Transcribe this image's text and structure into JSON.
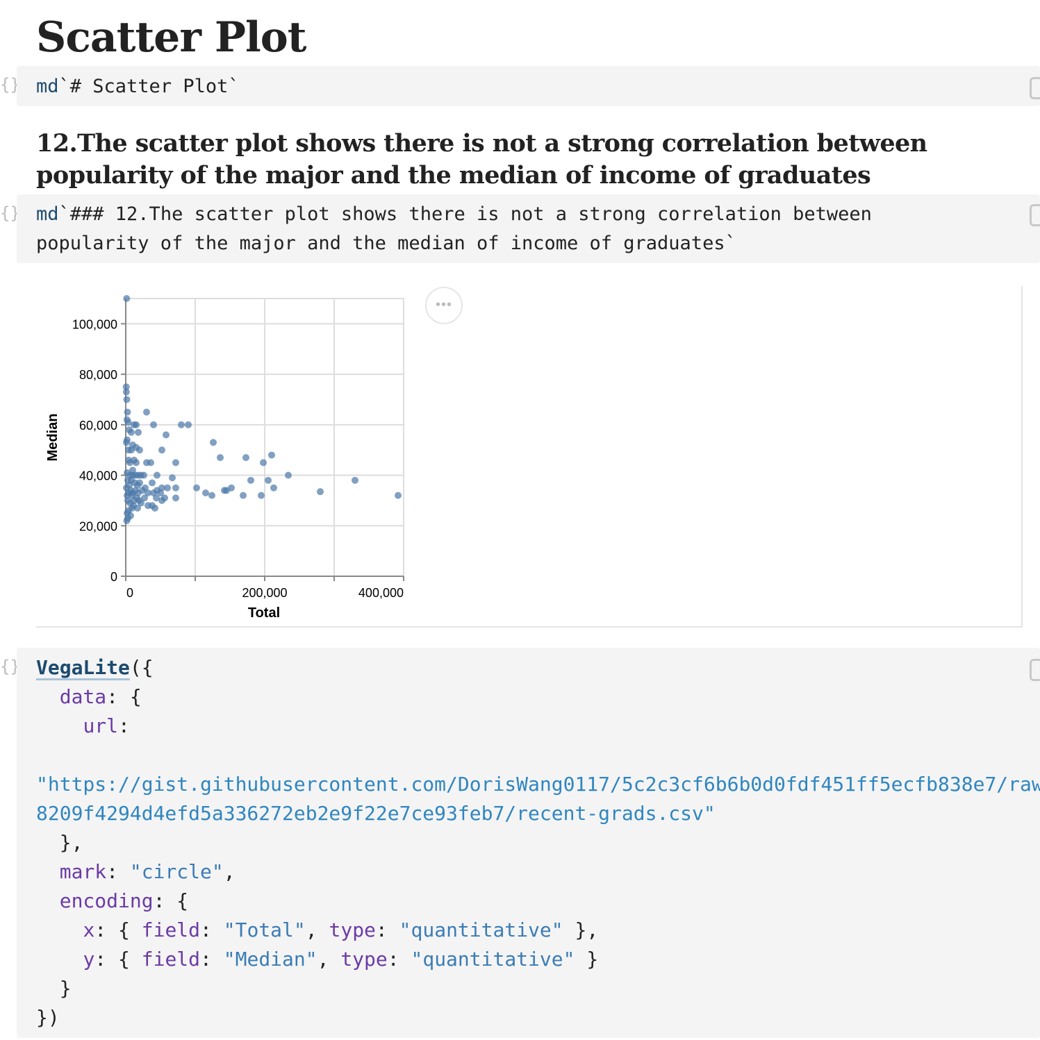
{
  "cells": {
    "title": {
      "heading": "Scatter Plot",
      "source_tag": "md",
      "source_body": "`# Scatter Plot`"
    },
    "subtitle": {
      "heading": "12.The scatter plot shows there is not a strong correlation between popularity of the major and the median of income of graduates",
      "source_tag": "md",
      "source_line1": "`### 12.The scatter plot shows there is not a strong correlation between",
      "source_line2": "popularity of the major and the median of income of graduates`"
    },
    "chart_code": {
      "fn": "VegaLite",
      "l1_rest": "({",
      "data_key": "data",
      "l2_rest": ": {",
      "url_key": "url",
      "l3_rest": ":",
      "url_line1": "\"https://gist.githubusercontent.com/DorisWang0117/5c2c3cf6b6b0d0fdf451ff5ecfb838e7/raw/",
      "url_line2": "8209f4294d4efd5a336272eb2e9f22e7ce93feb7/recent-grads.csv\"",
      "l7": "},",
      "mark_key": "mark",
      "mark_val": "\"circle\"",
      "encoding_key": "encoding",
      "x_key": "x",
      "field_key": "field",
      "type_key": "type",
      "x_field": "\"Total\"",
      "y_key": "y",
      "y_field": "\"Median\"",
      "quant": "\"quantitative\"",
      "close1": "}",
      "close2": "})"
    }
  },
  "gutter_icon": "{}",
  "menu_icon": "more-icon",
  "menu_glyph": "•••",
  "colors": {
    "point": "#4c78a8",
    "grid": "#dddddd",
    "axis": "#888888"
  },
  "chart_data": {
    "type": "scatter",
    "xlabel": "Total",
    "ylabel": "Median",
    "xlim": [
      0,
      400000
    ],
    "ylim": [
      0,
      110000
    ],
    "xticks": [
      "0",
      "200,000",
      "400,000"
    ],
    "yticks": [
      "0",
      "20,000",
      "40,000",
      "60,000",
      "80,000",
      "100,000"
    ],
    "x_tick_values": [
      0,
      200000,
      400000
    ],
    "y_tick_values": [
      0,
      20000,
      40000,
      60000,
      80000,
      100000
    ],
    "grid": true,
    "points": [
      [
        1258,
        110000
      ],
      [
        720,
        75000
      ],
      [
        850,
        73000
      ],
      [
        1500,
        70000
      ],
      [
        2500,
        65000
      ],
      [
        30000,
        65000
      ],
      [
        1800,
        62000
      ],
      [
        3500,
        61000
      ],
      [
        12000,
        60000
      ],
      [
        15000,
        60000
      ],
      [
        40000,
        60000
      ],
      [
        80000,
        60000
      ],
      [
        90000,
        60000
      ],
      [
        5000,
        58000
      ],
      [
        8000,
        57000
      ],
      [
        18000,
        57000
      ],
      [
        58000,
        56000
      ],
      [
        126000,
        53000
      ],
      [
        2000,
        54000
      ],
      [
        1000,
        53000
      ],
      [
        10000,
        52000
      ],
      [
        15000,
        51000
      ],
      [
        4000,
        50000
      ],
      [
        8000,
        50000
      ],
      [
        20000,
        50000
      ],
      [
        52000,
        50000
      ],
      [
        210000,
        48000
      ],
      [
        136000,
        47000
      ],
      [
        173000,
        47000
      ],
      [
        198000,
        45000
      ],
      [
        4000,
        46000
      ],
      [
        12000,
        46000
      ],
      [
        6000,
        45000
      ],
      [
        15000,
        45000
      ],
      [
        30000,
        45000
      ],
      [
        36000,
        45000
      ],
      [
        72000,
        45000
      ],
      [
        10000,
        42000
      ],
      [
        2000,
        41000
      ],
      [
        6000,
        40000
      ],
      [
        10000,
        40000
      ],
      [
        14000,
        40000
      ],
      [
        18000,
        40000
      ],
      [
        22000,
        40000
      ],
      [
        26000,
        40000
      ],
      [
        45000,
        40000
      ],
      [
        67000,
        39000
      ],
      [
        234000,
        40000
      ],
      [
        330000,
        38000
      ],
      [
        180000,
        38000
      ],
      [
        205000,
        38000
      ],
      [
        3000,
        38000
      ],
      [
        8000,
        38000
      ],
      [
        13000,
        37000
      ],
      [
        20000,
        37000
      ],
      [
        38000,
        37000
      ],
      [
        5000,
        36000
      ],
      [
        17000,
        36000
      ],
      [
        28000,
        35000
      ],
      [
        52000,
        35000
      ],
      [
        60000,
        35000
      ],
      [
        72000,
        35000
      ],
      [
        102000,
        35000
      ],
      [
        152000,
        35000
      ],
      [
        213000,
        35000
      ],
      [
        1000,
        35000
      ],
      [
        7000,
        34000
      ],
      [
        14000,
        34000
      ],
      [
        24000,
        34000
      ],
      [
        45000,
        34000
      ],
      [
        142000,
        34000
      ],
      [
        145000,
        34000
      ],
      [
        280000,
        33500
      ],
      [
        4000,
        33000
      ],
      [
        10000,
        33000
      ],
      [
        18000,
        33000
      ],
      [
        32000,
        33000
      ],
      [
        40000,
        33000
      ],
      [
        50000,
        33000
      ],
      [
        115000,
        33000
      ],
      [
        124000,
        32000
      ],
      [
        169000,
        32000
      ],
      [
        195000,
        32000
      ],
      [
        392000,
        32000
      ],
      [
        2000,
        32000
      ],
      [
        9000,
        32000
      ],
      [
        16000,
        31000
      ],
      [
        27000,
        31000
      ],
      [
        44000,
        31000
      ],
      [
        56000,
        31000
      ],
      [
        72000,
        31000
      ],
      [
        3000,
        30000
      ],
      [
        12000,
        30000
      ],
      [
        19000,
        30000
      ],
      [
        52000,
        30000
      ],
      [
        6000,
        29000
      ],
      [
        22000,
        29000
      ],
      [
        11000,
        28000
      ],
      [
        32000,
        28000
      ],
      [
        38000,
        28000
      ],
      [
        42000,
        27000
      ],
      [
        9000,
        27000
      ],
      [
        17000,
        27000
      ],
      [
        4000,
        26000
      ],
      [
        2000,
        25000
      ],
      [
        7000,
        24000
      ],
      [
        3000,
        23000
      ],
      [
        1500,
        22000
      ]
    ]
  }
}
